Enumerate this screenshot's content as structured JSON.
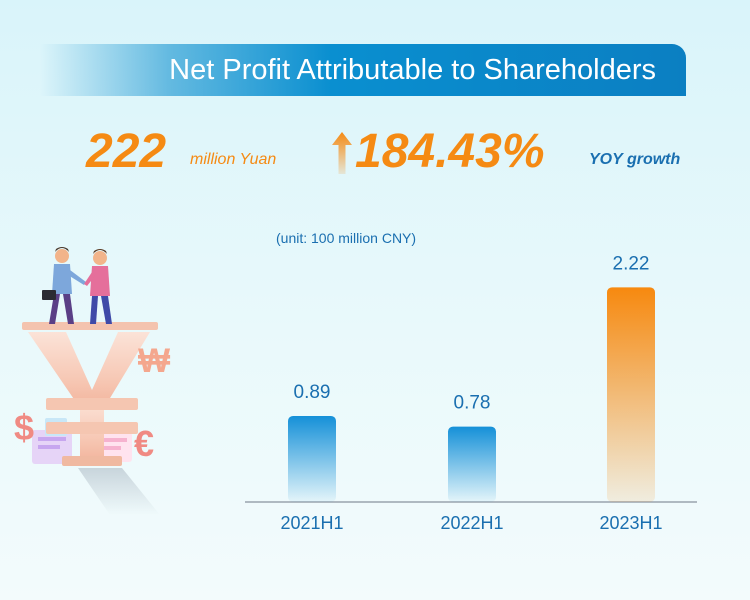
{
  "title": "Net Profit Attributable to Shareholders",
  "stats": {
    "profit_value": "222",
    "profit_unit": "million Yuan",
    "growth_value": "184.43%",
    "growth_label": "YOY growth"
  },
  "unit_label": "(unit: 100 million CNY)",
  "illustration": {
    "icons": [
      "handshake-people-icon",
      "yuan-sign-icon",
      "won-sign-icon",
      "dollar-sign-icon",
      "euro-sign-icon"
    ],
    "won_symbol": "₩",
    "dollar_symbol": "$",
    "euro_symbol": "€"
  },
  "colors": {
    "title_banner": "#0a8fd0",
    "stat_accent": "#f58a13",
    "text_blue": "#1a6fb0",
    "bar_blue": "#1590d8",
    "bar_orange": "#f7890f"
  },
  "chart_data": {
    "type": "bar",
    "categories": [
      "2021H1",
      "2022H1",
      "2023H1"
    ],
    "values": [
      0.89,
      0.78,
      2.22
    ],
    "value_labels": [
      "0.89",
      "0.78",
      "2.22"
    ],
    "highlight_index": 2,
    "ylim": [
      0,
      2.42
    ],
    "grid": false,
    "legend": "none"
  }
}
